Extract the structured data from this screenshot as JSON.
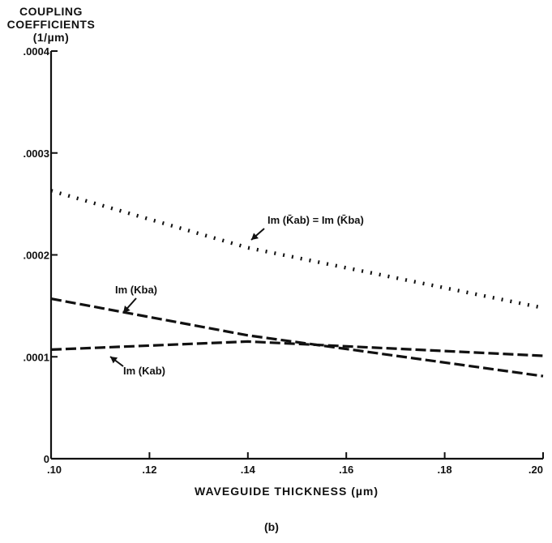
{
  "chart_data": {
    "type": "line",
    "ylabel_lines": [
      "COUPLING",
      "COEFFICIENTS",
      "(1/µm)"
    ],
    "xlabel": "WAVEGUIDE THICKNESS (µm)",
    "caption": "(b)",
    "xlim": [
      0.1,
      0.2
    ],
    "ylim": [
      0,
      0.0004
    ],
    "x_tick_labels": [
      ".10",
      ".12",
      ".14",
      ".16",
      ".18",
      ".20"
    ],
    "x_ticks": [
      0.1,
      0.12,
      0.14,
      0.16,
      0.18,
      0.2
    ],
    "y_tick_labels": [
      "0",
      ".0001",
      ".0002",
      ".0003",
      ".0004"
    ],
    "y_ticks": [
      0,
      0.0001,
      0.0002,
      0.0003,
      0.0004
    ],
    "grid": false,
    "series": [
      {
        "name": "Im(K̄ab) = Im(K̄ba)",
        "style": "dotted",
        "x": [
          0.1,
          0.14,
          0.2
        ],
        "y": [
          0.000263,
          0.000207,
          0.000148
        ]
      },
      {
        "name": "Im(Kba)",
        "style": "dashed",
        "x": [
          0.1,
          0.14,
          0.2
        ],
        "y": [
          0.000157,
          0.000121,
          8.1e-05
        ]
      },
      {
        "name": "Im(Kab)",
        "style": "dashed",
        "x": [
          0.1,
          0.14,
          0.2
        ],
        "y": [
          0.000107,
          0.000115,
          0.000101
        ]
      }
    ],
    "annotations": [
      {
        "text": "Im (K̄ab) = Im (K̄ba)",
        "series": 0
      },
      {
        "text": "Im (Kba)",
        "series": 1
      },
      {
        "text": "Im (Kab)",
        "series": 2
      }
    ]
  }
}
